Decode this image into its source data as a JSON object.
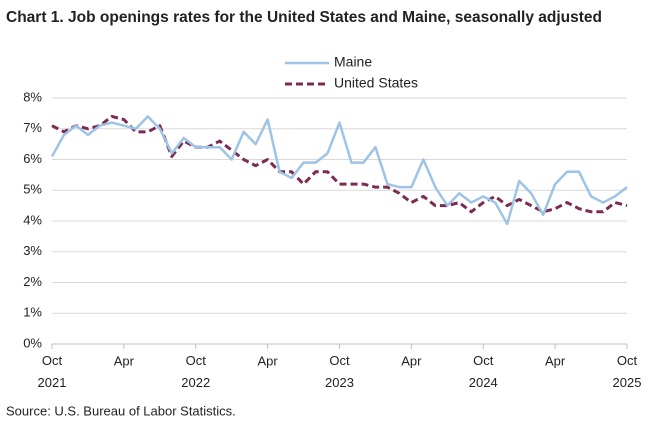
{
  "chart_data": {
    "type": "line",
    "title": "Chart 1. Job openings rates for the United States and Maine, seasonally adjusted",
    "source": "Source: U.S. Bureau of Labor Statistics.",
    "categories": [
      "Oct 2021",
      null,
      null,
      null,
      null,
      null,
      "Apr",
      null,
      null,
      null,
      null,
      null,
      "Oct 2022",
      null,
      null,
      null,
      null,
      null,
      "Apr",
      null,
      null,
      null,
      null,
      null,
      "Oct 2023",
      null,
      null,
      null,
      null,
      null,
      "Apr",
      null,
      null,
      null,
      null,
      null,
      "Oct 2024",
      null,
      null,
      null,
      null,
      null,
      "Apr",
      null,
      null,
      null,
      null,
      null,
      "Oct 2025"
    ],
    "series": [
      {
        "name": "Maine",
        "color": "#9dc3e6",
        "dash": false,
        "values": [
          6.1,
          6.8,
          7.1,
          6.8,
          7.1,
          7.2,
          7.1,
          7.0,
          7.4,
          7.0,
          6.2,
          6.7,
          6.4,
          6.4,
          6.4,
          6.0,
          6.9,
          6.5,
          7.3,
          5.6,
          5.4,
          5.9,
          5.9,
          6.2,
          7.2,
          5.9,
          5.9,
          6.4,
          5.2,
          5.1,
          5.1,
          6.0,
          5.1,
          4.5,
          4.9,
          4.6,
          4.8,
          4.6,
          3.9,
          5.3,
          4.9,
          4.2,
          5.2,
          5.6,
          5.6,
          4.8,
          4.6,
          4.8,
          5.1
        ]
      },
      {
        "name": "United States",
        "color": "#7b2c52",
        "dash": true,
        "values": [
          7.1,
          6.9,
          7.1,
          7.0,
          7.1,
          7.4,
          7.3,
          6.9,
          6.9,
          7.1,
          6.1,
          6.6,
          6.4,
          6.4,
          6.6,
          6.3,
          6.0,
          5.8,
          6.0,
          5.6,
          5.6,
          5.2,
          5.6,
          5.6,
          5.2,
          5.2,
          5.2,
          5.1,
          5.1,
          4.9,
          4.6,
          4.8,
          4.5,
          4.5,
          4.6,
          4.3,
          4.6,
          4.8,
          4.5,
          4.7,
          4.5,
          4.3,
          4.4,
          4.6,
          4.4,
          4.3,
          4.3,
          4.6,
          4.5
        ]
      }
    ],
    "ylim": [
      0,
      8
    ],
    "yticks": [
      {
        "value": 0,
        "label": "0%"
      },
      {
        "value": 1,
        "label": "1%"
      },
      {
        "value": 2,
        "label": "2%"
      },
      {
        "value": 3,
        "label": "3%"
      },
      {
        "value": 4,
        "label": "4%"
      },
      {
        "value": 5,
        "label": "5%"
      },
      {
        "value": 6,
        "label": "6%"
      },
      {
        "value": 7,
        "label": "7%"
      },
      {
        "value": 8,
        "label": "8%"
      }
    ],
    "grid": true
  }
}
